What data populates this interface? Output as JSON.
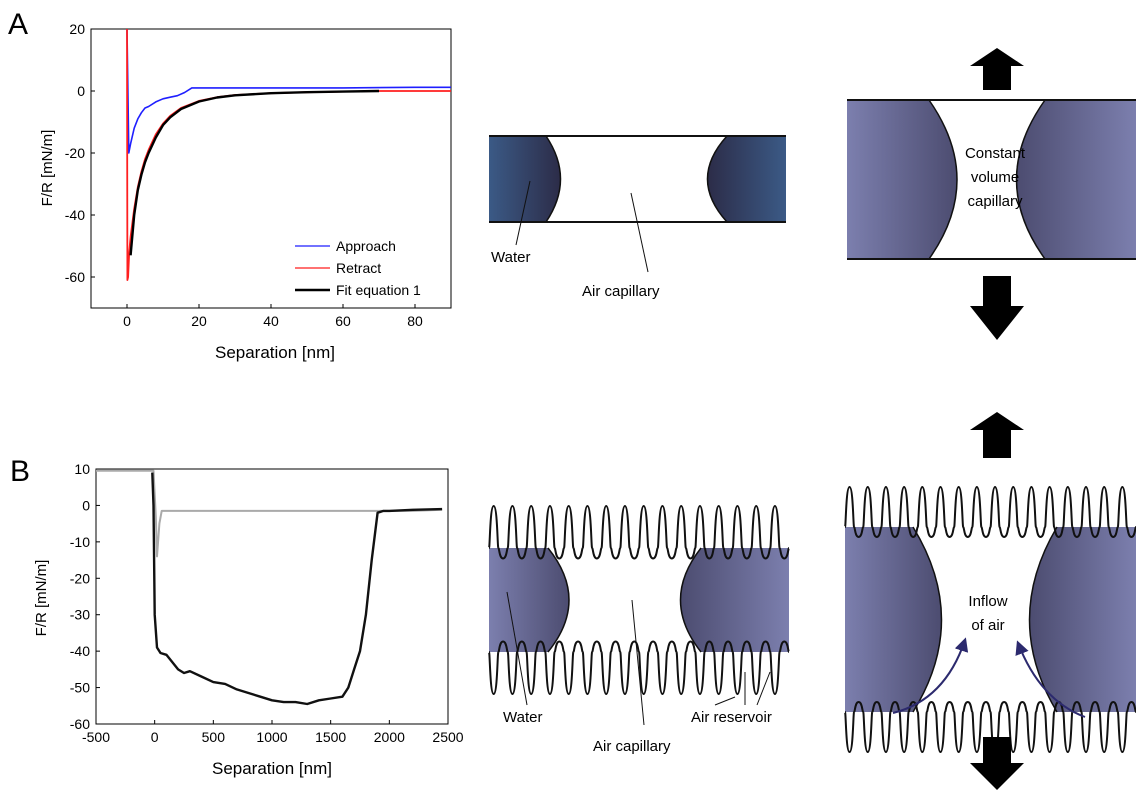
{
  "panels": {
    "a": "A",
    "b": "B"
  },
  "chart_data": [
    {
      "type": "line",
      "xlabel": "Separation [nm]",
      "ylabel": "F/R [mN/m]",
      "xlim": [
        -10,
        90
      ],
      "ylim": [
        -70,
        20
      ],
      "xticks": [
        0,
        20,
        40,
        60,
        80
      ],
      "yticks": [
        20,
        0,
        -20,
        -40,
        -60
      ],
      "legend_position": "bottom-right",
      "series": [
        {
          "name": "Approach",
          "color": "#1f1fff",
          "x": [
            0,
            0.5,
            1,
            2,
            3,
            4,
            5,
            6,
            8,
            10,
            12,
            14,
            16,
            18,
            20,
            30,
            40,
            60,
            80,
            90
          ],
          "y": [
            20,
            -20,
            -17,
            -12,
            -9,
            -7,
            -5.5,
            -5,
            -3.5,
            -2.5,
            -2,
            -1.5,
            -0.5,
            1,
            1,
            1,
            1,
            1,
            1.2,
            1.2
          ]
        },
        {
          "name": "Retract",
          "color": "#ff1f1f",
          "x": [
            0,
            0.1,
            0.3,
            0.6,
            1,
            2,
            3,
            4,
            5,
            6,
            8,
            10,
            12,
            15,
            20,
            25,
            30,
            40,
            50,
            60,
            70,
            80,
            90
          ],
          "y": [
            20,
            -61,
            -60,
            -52,
            -47,
            -38,
            -31,
            -26,
            -22,
            -19,
            -14,
            -10.5,
            -8,
            -5.5,
            -3.2,
            -2,
            -1.3,
            -0.7,
            -0.4,
            -0.2,
            0,
            0,
            0
          ]
        },
        {
          "name": "Fit equation 1",
          "color": "#000000",
          "x": [
            1,
            2,
            3,
            4,
            5,
            6,
            8,
            10,
            12,
            15,
            20,
            25,
            30,
            40,
            50,
            60,
            70
          ],
          "y": [
            -53,
            -40,
            -32,
            -27,
            -23,
            -20,
            -15,
            -11,
            -8.5,
            -5.8,
            -3.4,
            -2.1,
            -1.4,
            -0.7,
            -0.4,
            -0.2,
            0
          ]
        }
      ]
    },
    {
      "type": "line",
      "xlabel": "Separation [nm]",
      "ylabel": "F/R [mN/m]",
      "xlim": [
        -500,
        2500
      ],
      "ylim": [
        -60,
        10
      ],
      "xticks": [
        -500,
        0,
        500,
        1000,
        1500,
        2000,
        2500
      ],
      "yticks": [
        10,
        0,
        -10,
        -20,
        -30,
        -40,
        -50,
        -60
      ],
      "series": [
        {
          "color": "#aaaaaa",
          "x": [
            -500,
            -20,
            -10,
            10,
            20,
            40,
            60,
            100,
            1900,
            1950,
            2000,
            2200,
            2450
          ],
          "y": [
            9.5,
            9.5,
            9.5,
            -3,
            -14,
            -5,
            -1.5,
            -1.5,
            -1.5,
            -1.5,
            -1.5,
            -1.5,
            -1.2
          ]
        },
        {
          "color": "#111111",
          "x": [
            -20,
            -10,
            0,
            20,
            50,
            100,
            150,
            200,
            250,
            300,
            400,
            500,
            600,
            700,
            800,
            900,
            1000,
            1100,
            1200,
            1300,
            1400,
            1500,
            1600,
            1650,
            1700,
            1750,
            1800,
            1850,
            1900,
            1950,
            2000,
            2200,
            2450
          ],
          "y": [
            9,
            0,
            -30,
            -39,
            -40.5,
            -41,
            -43,
            -45,
            -46,
            -45.5,
            -47,
            -48.5,
            -49,
            -50.5,
            -51.5,
            -52.5,
            -53.5,
            -54,
            -54,
            -54.5,
            -53.5,
            -53,
            -52.5,
            -50,
            -45,
            -40,
            -30,
            -15,
            -2,
            -1.5,
            -1.5,
            -1.2,
            -1
          ]
        }
      ]
    }
  ],
  "diagrams": {
    "a_middle": {
      "water": "Water",
      "air_capillary": "Air capillary"
    },
    "a_right": {
      "line1": "Constant",
      "line2": "volume",
      "line3": "capillary"
    },
    "b_middle": {
      "water": "Water",
      "air_capillary": "Air capillary",
      "air_reservoir": "Air reservoir"
    },
    "b_right": {
      "line1": "Inflow",
      "line2": "of air"
    }
  },
  "colors": {
    "water_dark": "#2f3050",
    "water_mid": "#5b5f86",
    "water_light": "#8588b0",
    "arrow": "#000000",
    "inflow_arrow": "#2c2a6e"
  }
}
